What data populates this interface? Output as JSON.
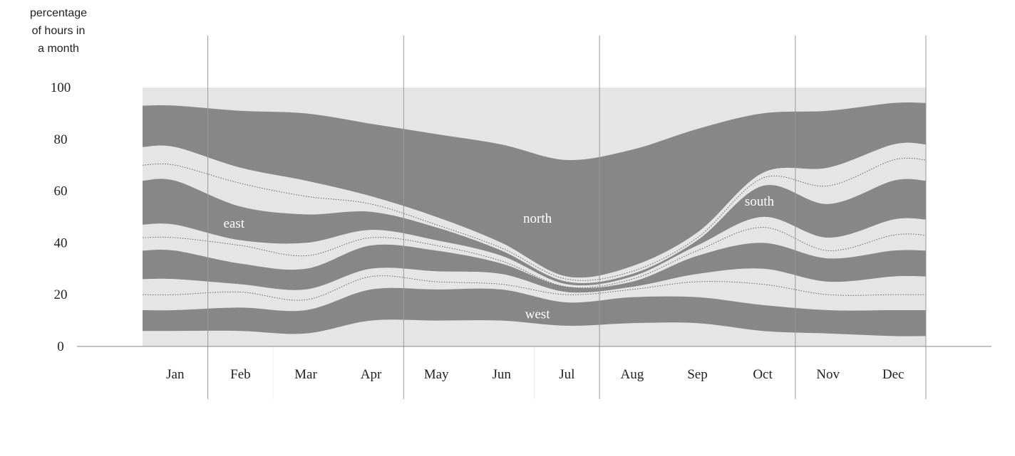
{
  "chart_data": {
    "type": "area",
    "ylabel_lines": [
      "percentage",
      "of hours in",
      "a month"
    ],
    "xlabel": "",
    "ylim": [
      0,
      100
    ],
    "y_ticks": [
      0,
      20,
      40,
      60,
      80,
      100
    ],
    "categories": [
      "Jan",
      "Feb",
      "Mar",
      "Apr",
      "May",
      "Jun",
      "Jul",
      "Aug",
      "Sep",
      "Oct",
      "Nov",
      "Dec"
    ],
    "grid": false,
    "annotations": [
      "north",
      "east",
      "south",
      "west"
    ],
    "colors": {
      "dark_band": "#878787",
      "light_band": "#e5e5e5",
      "background": "#e5e5e5"
    },
    "boundaries": [
      {
        "x": [
          0,
          1,
          2,
          3,
          4,
          5,
          6,
          7,
          8,
          9,
          10,
          11
        ],
        "y": [
          93,
          91,
          90,
          86,
          82,
          78,
          72,
          76,
          84,
          90,
          91,
          94
        ]
      },
      {
        "x": [
          0,
          1,
          2,
          3,
          4,
          5,
          6,
          7,
          8,
          9,
          10,
          11
        ],
        "y": [
          77,
          69,
          64,
          58,
          50,
          40,
          27,
          31,
          44,
          67,
          69,
          78
        ]
      },
      {
        "x": [
          0,
          1,
          2,
          3,
          4,
          5,
          6,
          7,
          8,
          9,
          10,
          11
        ],
        "y": [
          70,
          63,
          58,
          55,
          47,
          38,
          26,
          29,
          42,
          65,
          62,
          72
        ]
      },
      {
        "x": [
          0,
          1,
          2,
          3,
          4,
          5,
          6,
          7,
          8,
          9,
          10,
          11
        ],
        "y": [
          64,
          54,
          51,
          52,
          46,
          37,
          25,
          28,
          41,
          62,
          55,
          64
        ]
      },
      {
        "x": [
          0,
          1,
          2,
          3,
          4,
          5,
          6,
          7,
          8,
          9,
          10,
          11
        ],
        "y": [
          47,
          41,
          40,
          45,
          41,
          35,
          24,
          27,
          39,
          50,
          42,
          49
        ]
      },
      {
        "x": [
          0,
          1,
          2,
          3,
          4,
          5,
          6,
          7,
          8,
          9,
          10,
          11
        ],
        "y": [
          42,
          39,
          35,
          42,
          39,
          33,
          23,
          26,
          37,
          46,
          37,
          43
        ]
      },
      {
        "x": [
          0,
          1,
          2,
          3,
          4,
          5,
          6,
          7,
          8,
          9,
          10,
          11
        ],
        "y": [
          37,
          32,
          30,
          39,
          37,
          32,
          23,
          25,
          35,
          40,
          34,
          37
        ]
      },
      {
        "x": [
          0,
          1,
          2,
          3,
          4,
          5,
          6,
          7,
          8,
          9,
          10,
          11
        ],
        "y": [
          26,
          24,
          22,
          30,
          29,
          28,
          21,
          23,
          28,
          30,
          25,
          27
        ]
      },
      {
        "x": [
          0,
          1,
          2,
          3,
          4,
          5,
          6,
          7,
          8,
          9,
          10,
          11
        ],
        "y": [
          20,
          21,
          18,
          27,
          25,
          24,
          20,
          22,
          25,
          24,
          20,
          20
        ]
      },
      {
        "x": [
          0,
          1,
          2,
          3,
          4,
          5,
          6,
          7,
          8,
          9,
          10,
          11
        ],
        "y": [
          14,
          15,
          14,
          22,
          22,
          22,
          17,
          19,
          19,
          16,
          14,
          14
        ]
      },
      {
        "x": [
          0,
          1,
          2,
          3,
          4,
          5,
          6,
          7,
          8,
          9,
          10,
          11
        ],
        "y": [
          6,
          6,
          5,
          10,
          10,
          10,
          8,
          9,
          9,
          6,
          5,
          4
        ]
      }
    ],
    "bands": [
      {
        "between": [
          0,
          1
        ],
        "fill": "dark"
      },
      {
        "between": [
          1,
          3
        ],
        "fill": "light"
      },
      {
        "between": [
          3,
          4
        ],
        "fill": "dark"
      },
      {
        "between": [
          4,
          6
        ],
        "fill": "light"
      },
      {
        "between": [
          6,
          7
        ],
        "fill": "dark"
      },
      {
        "between": [
          7,
          9
        ],
        "fill": "light"
      },
      {
        "between": [
          9,
          10
        ],
        "fill": "dark"
      }
    ],
    "dotted_lines": [
      2,
      5,
      8
    ]
  }
}
